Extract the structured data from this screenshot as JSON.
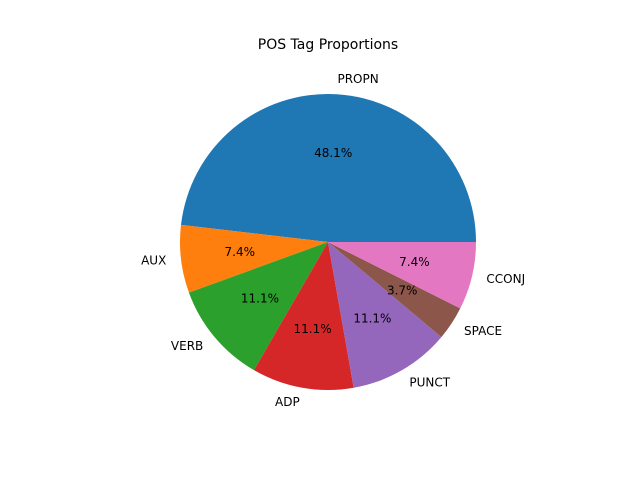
{
  "chart_data": {
    "type": "pie",
    "title": "POS Tag Proportions",
    "start_angle_deg": 0,
    "counterclockwise": true,
    "slices": [
      {
        "label": "PROPN",
        "value": 48.1,
        "pct_label": "48.1%",
        "color": "#1f77b4"
      },
      {
        "label": "AUX",
        "value": 7.4,
        "pct_label": "7.4%",
        "color": "#ff7f0e"
      },
      {
        "label": "VERB",
        "value": 11.1,
        "pct_label": "11.1%",
        "color": "#2ca02c"
      },
      {
        "label": "ADP",
        "value": 11.1,
        "pct_label": "11.1%",
        "color": "#d62728"
      },
      {
        "label": "PUNCT",
        "value": 11.1,
        "pct_label": "11.1%",
        "color": "#9467bd"
      },
      {
        "label": "SPACE",
        "value": 3.7,
        "pct_label": "3.7%",
        "color": "#8c564b"
      },
      {
        "label": "CCONJ",
        "value": 7.4,
        "pct_label": "7.4%",
        "color": "#e377c2"
      }
    ]
  }
}
